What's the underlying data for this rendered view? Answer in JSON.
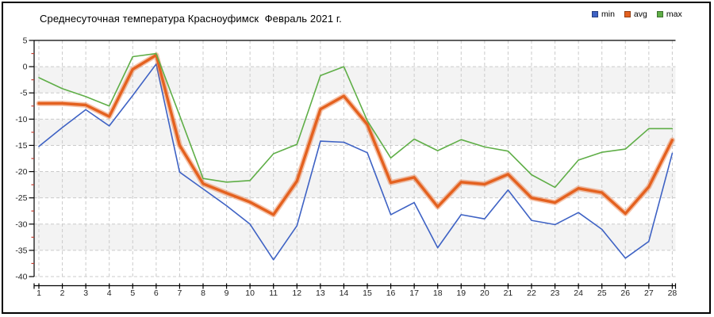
{
  "header": {
    "title": "Среднесуточная температура Красноуфимск  Февраль 2021 г."
  },
  "legend": {
    "position": "top-right",
    "items": [
      {
        "label": "min",
        "color": "#3E62C4"
      },
      {
        "label": "avg",
        "color": "#E4611F"
      },
      {
        "label": "max",
        "color": "#5FAE47"
      }
    ]
  },
  "chart_data": {
    "type": "line",
    "title": "Среднесуточная температура Красноуфимск  Февраль 2021 г.",
    "xlabel": "",
    "ylabel": "",
    "x": [
      1,
      2,
      3,
      4,
      5,
      6,
      7,
      8,
      9,
      10,
      11,
      12,
      13,
      14,
      15,
      16,
      17,
      18,
      19,
      20,
      21,
      22,
      23,
      24,
      25,
      26,
      27,
      28
    ],
    "x_tick_labels": [
      "1",
      "2",
      "3",
      "4",
      "5",
      "6",
      "7",
      "8",
      "9",
      "10",
      "11",
      "12",
      "13",
      "14",
      "15",
      "16",
      "17",
      "18",
      "19",
      "20",
      "21",
      "22",
      "23",
      "24",
      "25",
      "26",
      "27",
      "28"
    ],
    "ylim": [
      -40,
      5
    ],
    "y_ticks": [
      5,
      0,
      -5,
      -10,
      -15,
      -20,
      -25,
      -30,
      -35,
      -40
    ],
    "y_minor_tick_step": 2.5,
    "grid": true,
    "alternating_bands": true,
    "legend_position": "top-right",
    "series": [
      {
        "name": "min",
        "color": "#3E62C4",
        "width": 1.6,
        "values": [
          -15.2,
          -11.6,
          -8.2,
          -11.3,
          -5.5,
          0.5,
          -20.1,
          -23.3,
          -26.5,
          -30.0,
          -36.8,
          -30.3,
          -14.2,
          -14.4,
          -16.4,
          -28.2,
          -25.9,
          -34.5,
          -28.2,
          -29.0,
          -23.5,
          -29.3,
          -30.1,
          -27.8,
          -31.0,
          -36.5,
          -33.3,
          -16.5
        ]
      },
      {
        "name": "avg",
        "color": "#E4611F",
        "width": 3.4,
        "halo": true,
        "values": [
          -7.0,
          -7.0,
          -7.3,
          -9.5,
          -0.5,
          2.2,
          -15.0,
          -22.3,
          -24.1,
          -25.8,
          -28.2,
          -21.8,
          -8.1,
          -5.6,
          -11.0,
          -22.1,
          -21.1,
          -26.7,
          -22.0,
          -22.4,
          -20.5,
          -25.0,
          -25.9,
          -23.2,
          -24.0,
          -28.0,
          -22.9,
          -14.0
        ]
      },
      {
        "name": "max",
        "color": "#5FAE47",
        "width": 1.6,
        "values": [
          -2.1,
          -4.2,
          -5.7,
          -7.5,
          1.9,
          2.5,
          -9.3,
          -21.3,
          -22.0,
          -21.7,
          -16.6,
          -14.8,
          -1.7,
          0.0,
          -10.3,
          -17.4,
          -13.8,
          -16.0,
          -13.9,
          -15.3,
          -16.1,
          -20.6,
          -23.0,
          -17.8,
          -16.3,
          -15.7,
          -11.8,
          -11.8
        ]
      }
    ],
    "style": {
      "band_fill": "#F3F3F3",
      "grid_color": "#CBCBCB",
      "axis_color": "#000000",
      "minor_tick_color": "#C23B2E",
      "label_color": "#1F1F1F",
      "plot_top_frame": true
    }
  }
}
